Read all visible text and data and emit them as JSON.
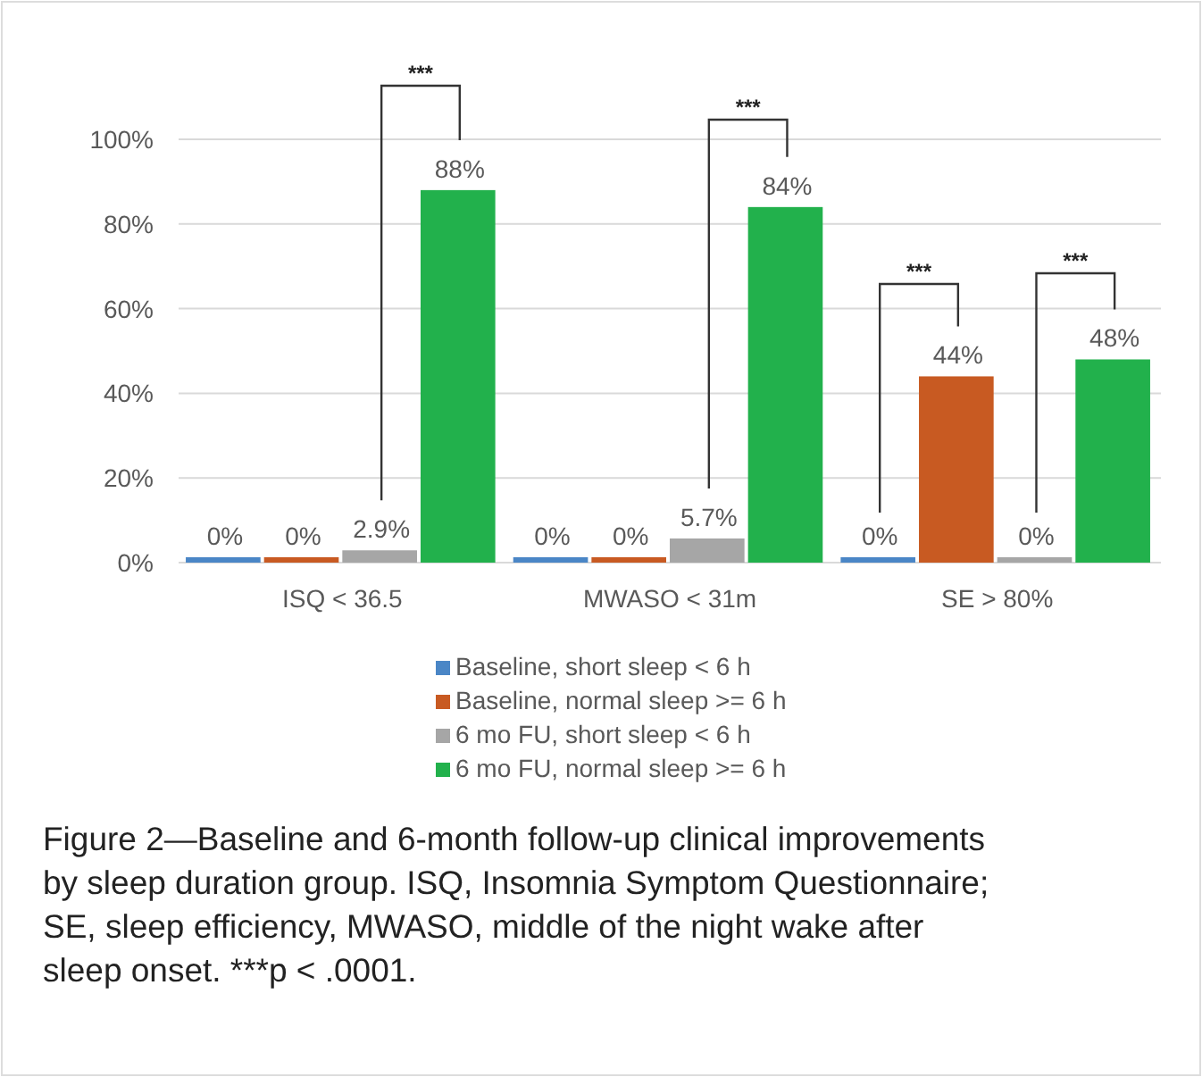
{
  "chart_data": {
    "type": "bar",
    "categories": [
      "ISQ < 36.5",
      "MWASO < 31m",
      "SE > 80%"
    ],
    "series": [
      {
        "name": "Baseline, short sleep < 6 h",
        "color": "#4a86c6",
        "values": [
          0,
          0,
          0
        ],
        "value_labels": [
          "0%",
          "0%",
          "0%"
        ]
      },
      {
        "name": "Baseline, normal sleep >= 6 h",
        "color": "#c85a22",
        "values": [
          0,
          0,
          44
        ],
        "value_labels": [
          "0%",
          "0%",
          "44%"
        ]
      },
      {
        "name": "6 mo FU, short sleep < 6 h",
        "color": "#a6a6a6",
        "values": [
          2.9,
          5.7,
          0
        ],
        "value_labels": [
          "2.9%",
          "5.7%",
          "0%"
        ]
      },
      {
        "name": "6 mo FU, normal sleep >= 6 h",
        "color": "#22b14c",
        "values": [
          88,
          84,
          48
        ],
        "value_labels": [
          "88%",
          "84%",
          "48%"
        ]
      }
    ],
    "ylim": [
      0,
      100
    ],
    "yticks": [
      {
        "value": 0,
        "label": "0%"
      },
      {
        "value": 20,
        "label": "20%"
      },
      {
        "value": 40,
        "label": "40%"
      },
      {
        "value": 60,
        "label": "60%"
      },
      {
        "value": 80,
        "label": "80%"
      },
      {
        "value": 100,
        "label": "100%"
      }
    ],
    "grid": "y",
    "legend": "bottom",
    "annotations": [
      "***",
      "***",
      "***",
      "***",
      "Figure 2—Baseline and 6-month follow-up clinical improvements by sleep duration group. ISQ, Insomnia Symptom Questionnaire; SE, sleep efficiency, MWASO, middle of the night wake after sleep onset. ***p < .0001."
    ]
  }
}
